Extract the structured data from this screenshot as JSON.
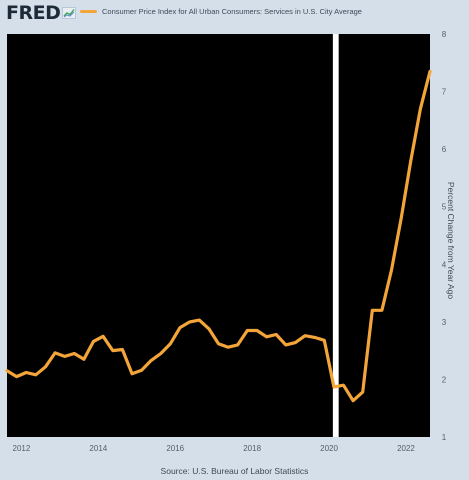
{
  "brand": {
    "logo": "FRED",
    "logo_icon": "chart-line-icon"
  },
  "colors": {
    "series": "#f3a53a",
    "plot_bg": "#000000",
    "page_bg": "#d5dfe9",
    "gap": "#ffffff"
  },
  "chart_data": {
    "type": "line",
    "title": "",
    "legend": [
      {
        "name": "Consumer Price Index for All Urban Consumers: Services in U.S. City Average",
        "color": "#f3a53a"
      }
    ],
    "legend_position": "top",
    "xlabel": "",
    "ylabel": "Percent Change from Year Ago",
    "ylim": [
      1,
      8
    ],
    "xlim": [
      2011.625,
      2022.625
    ],
    "x_ticks": [
      2012,
      2014,
      2016,
      2018,
      2020,
      2022
    ],
    "x_tick_labels": [
      "2012",
      "2014",
      "2016",
      "2018",
      "2020",
      "2022"
    ],
    "y_ticks": [
      1,
      2,
      3,
      4,
      5,
      6,
      7,
      8
    ],
    "y_tick_labels": [
      "1",
      "2",
      "3",
      "4",
      "5",
      "6",
      "7",
      "8"
    ],
    "y_axis_side": "right",
    "grid": false,
    "series": [
      {
        "name": "Consumer Price Index for All Urban Consumers: Services in U.S. City Average",
        "x": [
          2011.625,
          2011.875,
          2012.125,
          2012.375,
          2012.625,
          2012.875,
          2013.125,
          2013.375,
          2013.625,
          2013.875,
          2014.125,
          2014.375,
          2014.625,
          2014.875,
          2015.125,
          2015.375,
          2015.625,
          2015.875,
          2016.125,
          2016.375,
          2016.625,
          2016.875,
          2017.125,
          2017.375,
          2017.625,
          2017.875,
          2018.125,
          2018.375,
          2018.625,
          2018.875,
          2019.125,
          2019.375,
          2019.625,
          2019.875,
          2020.125,
          2020.375,
          2020.625,
          2020.875,
          2021.125,
          2021.375,
          2021.625,
          2021.875,
          2022.125,
          2022.375,
          2022.625
        ],
        "y": [
          2.15,
          2.05,
          2.12,
          2.08,
          2.22,
          2.46,
          2.4,
          2.45,
          2.35,
          2.66,
          2.75,
          2.5,
          2.52,
          2.1,
          2.16,
          2.33,
          2.45,
          2.62,
          2.9,
          3.0,
          3.03,
          2.88,
          2.62,
          2.56,
          2.6,
          2.85,
          2.85,
          2.74,
          2.78,
          2.6,
          2.64,
          2.76,
          2.73,
          2.68,
          1.87,
          1.9,
          1.63,
          1.78,
          3.2,
          3.2,
          3.9,
          4.8,
          5.8,
          6.7,
          7.35
        ]
      }
    ],
    "recessions": [
      {
        "start": 2020.125,
        "end": 2020.25
      }
    ]
  },
  "footer": {
    "source": "Source: U.S. Bureau of Labor Statistics"
  }
}
